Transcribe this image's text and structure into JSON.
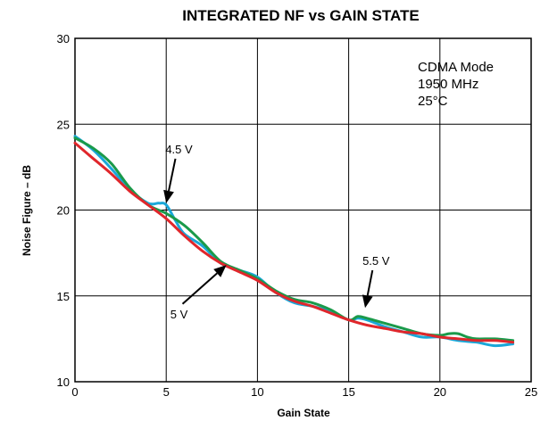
{
  "chart_data": {
    "type": "line",
    "title": "INTEGRATED NF vs GAIN STATE",
    "xlabel": "Gain State",
    "ylabel": "Noise Figure – dB",
    "xlim": [
      0,
      25
    ],
    "ylim": [
      10,
      30
    ],
    "xticks": [
      "0",
      "5",
      "10",
      "15",
      "20",
      "25"
    ],
    "yticks": [
      "10",
      "15",
      "20",
      "25",
      "30"
    ],
    "grid": true,
    "conditions": [
      "CDMA Mode",
      "1950 MHz",
      "25°C"
    ],
    "annotations": [
      {
        "text": "4.5 V",
        "x": 5.7,
        "y": 23.3,
        "arrow_to": [
          5.0,
          20.4
        ]
      },
      {
        "text": "5 V",
        "x": 5.7,
        "y": 13.7,
        "arrow_to": [
          8.3,
          16.8
        ]
      },
      {
        "text": "5.5 V",
        "x": 16.5,
        "y": 16.8,
        "arrow_to": [
          15.9,
          14.3
        ]
      }
    ],
    "series": [
      {
        "name": "4.5 V",
        "color": "#1aa7d8",
        "x": [
          0,
          1,
          2,
          3,
          4,
          4.6,
          5.0,
          5.5,
          6,
          7,
          8,
          9,
          10,
          11,
          12,
          13,
          14,
          15,
          15.5,
          16,
          17,
          18,
          19,
          20,
          21,
          22,
          23,
          24
        ],
        "y": [
          24.3,
          23.5,
          22.4,
          21.2,
          20.4,
          20.4,
          20.3,
          19.4,
          18.6,
          17.9,
          16.9,
          16.5,
          16.1,
          15.2,
          14.6,
          14.4,
          14.1,
          13.6,
          13.7,
          13.6,
          13.2,
          12.9,
          12.6,
          12.6,
          12.4,
          12.3,
          12.1,
          12.2
        ]
      },
      {
        "name": "5 V",
        "color": "#1a9a4a",
        "x": [
          0,
          1,
          2,
          3,
          4,
          5,
          6,
          7,
          8,
          9,
          10,
          11,
          12,
          13,
          14,
          15,
          15.5,
          16,
          17,
          18,
          19,
          20,
          20.5,
          21,
          21.5,
          22,
          23,
          24
        ],
        "y": [
          24.2,
          23.6,
          22.7,
          21.3,
          20.3,
          19.8,
          19.1,
          18.1,
          17.0,
          16.5,
          16.0,
          15.3,
          14.8,
          14.6,
          14.2,
          13.6,
          13.8,
          13.7,
          13.4,
          13.1,
          12.8,
          12.7,
          12.8,
          12.8,
          12.6,
          12.5,
          12.5,
          12.4
        ]
      },
      {
        "name": "5.5 V",
        "color": "#e0262b",
        "x": [
          0,
          1,
          2,
          3,
          4,
          5,
          6,
          7,
          8,
          9,
          10,
          11,
          12,
          13,
          14,
          15,
          16,
          17,
          18,
          19,
          20,
          21,
          22,
          23,
          24
        ],
        "y": [
          23.9,
          23.0,
          22.1,
          21.1,
          20.3,
          19.5,
          18.5,
          17.6,
          16.9,
          16.4,
          15.9,
          15.2,
          14.7,
          14.4,
          14.0,
          13.6,
          13.3,
          13.1,
          12.9,
          12.8,
          12.6,
          12.5,
          12.4,
          12.4,
          12.3
        ]
      }
    ]
  }
}
